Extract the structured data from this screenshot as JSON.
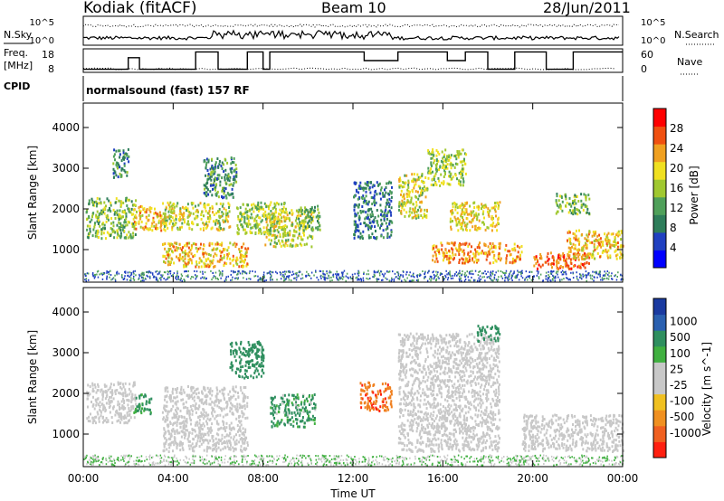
{
  "header": {
    "radar": "Kodiak (fitACF)",
    "beam": "Beam 10",
    "date": "28/Jun/2011"
  },
  "left_labels": {
    "nsky": "N.Sky",
    "freq": "Freq.",
    "freq_unit": "[MHz]",
    "cpid": "CPID"
  },
  "right_labels": {
    "nsearch": "N.Search",
    "nave": "Nave"
  },
  "ticks": {
    "noise_top": "10^5",
    "noise_bottom": "10^0",
    "freq_top": "18",
    "freq_bottom": "8",
    "nave_top": "60",
    "nave_bottom": "0"
  },
  "cpid_text": "normalsound (fast) 157 RF",
  "colors": {
    "power_scale": [
      "#0000ff",
      "#2040c0",
      "#2e7d5a",
      "#4fa05a",
      "#a0c830",
      "#f0e020",
      "#f0a020",
      "#f05010",
      "#ff0000"
    ],
    "velocity_scale": [
      "#1a3aa0",
      "#2a5ab0",
      "#2f7f5f",
      "#30b040",
      "#c8c8c8",
      "#c8c8c8",
      "#f0d020",
      "#f09020",
      "#f04010",
      "#ff0000"
    ],
    "ground_scatter": "#c8c8c8"
  },
  "chart_data": [
    {
      "type": "heatmap",
      "title": "Power",
      "xlabel": "Time UT",
      "ylabel": "Slant Range [km]",
      "x_ticks": [
        "00:00",
        "04:00",
        "08:00",
        "12:00",
        "16:00",
        "20:00",
        "00:00"
      ],
      "y_ticks": [
        1000,
        2000,
        3000,
        4000
      ],
      "ylim": [
        200,
        4600
      ],
      "colorbar_label": "Power [dB]",
      "colorbar_ticks": [
        4,
        8,
        12,
        16,
        20,
        24,
        28
      ],
      "colorbar_range": [
        0,
        32
      ],
      "scatter_regions": [
        {
          "t0": 0.1,
          "t1": 2.3,
          "r0": 1300,
          "r1": 2300,
          "db": 14
        },
        {
          "t0": 1.3,
          "t1": 2.0,
          "r0": 2800,
          "r1": 3500,
          "db": 10
        },
        {
          "t0": 2.2,
          "t1": 3.5,
          "r0": 1500,
          "r1": 2100,
          "db": 22
        },
        {
          "t0": 3.5,
          "t1": 6.5,
          "r0": 1500,
          "r1": 2200,
          "db": 18
        },
        {
          "t0": 3.5,
          "t1": 7.3,
          "r0": 600,
          "r1": 1200,
          "db": 22
        },
        {
          "t0": 5.3,
          "t1": 6.8,
          "r0": 2300,
          "r1": 3300,
          "db": 10
        },
        {
          "t0": 6.8,
          "t1": 9.0,
          "r0": 1400,
          "r1": 2200,
          "db": 16
        },
        {
          "t0": 8.0,
          "t1": 10.2,
          "r0": 1100,
          "r1": 2000,
          "db": 18
        },
        {
          "t0": 9.5,
          "t1": 10.5,
          "r0": 1500,
          "r1": 2100,
          "db": 12
        },
        {
          "t0": 12.0,
          "t1": 13.7,
          "r0": 1300,
          "r1": 2700,
          "db": 8
        },
        {
          "t0": 14.0,
          "t1": 15.3,
          "r0": 1800,
          "r1": 2900,
          "db": 18
        },
        {
          "t0": 15.3,
          "t1": 17.0,
          "r0": 2600,
          "r1": 3500,
          "db": 16
        },
        {
          "t0": 15.5,
          "t1": 19.5,
          "r0": 700,
          "r1": 1200,
          "db": 24
        },
        {
          "t0": 16.3,
          "t1": 18.5,
          "r0": 1500,
          "r1": 2200,
          "db": 20
        },
        {
          "t0": 20.0,
          "t1": 22.5,
          "r0": 550,
          "r1": 950,
          "db": 28
        },
        {
          "t0": 21.5,
          "t1": 24.0,
          "r0": 800,
          "r1": 1500,
          "db": 22
        },
        {
          "t0": 21.0,
          "t1": 22.5,
          "r0": 1900,
          "r1": 2400,
          "db": 14
        }
      ]
    },
    {
      "type": "heatmap",
      "title": "Velocity",
      "xlabel": "Time UT",
      "ylabel": "Slant Range [km]",
      "x_ticks": [
        "00:00",
        "04:00",
        "08:00",
        "12:00",
        "16:00",
        "20:00",
        "00:00"
      ],
      "y_ticks": [
        1000,
        2000,
        3000,
        4000
      ],
      "ylim": [
        200,
        4600
      ],
      "colorbar_label": "Velocity [m s^-1]",
      "colorbar_ticks": [
        1000,
        500,
        100,
        25,
        -25,
        -100,
        -500,
        -1000
      ],
      "scatter_regions": [
        {
          "t0": 0.1,
          "t1": 2.3,
          "r0": 1300,
          "r1": 2300,
          "v": 0
        },
        {
          "t0": 2.2,
          "t1": 3.0,
          "r0": 1500,
          "r1": 2000,
          "v": 200
        },
        {
          "t0": 3.5,
          "t1": 7.3,
          "r0": 600,
          "r1": 2200,
          "v": 0
        },
        {
          "t0": 6.5,
          "t1": 8.0,
          "r0": 2400,
          "r1": 3300,
          "v": 300
        },
        {
          "t0": 8.3,
          "t1": 10.3,
          "r0": 1200,
          "r1": 2000,
          "v": 150
        },
        {
          "t0": 12.3,
          "t1": 13.7,
          "r0": 1600,
          "r1": 2300,
          "v": -400
        },
        {
          "t0": 14.0,
          "t1": 18.5,
          "r0": 600,
          "r1": 3500,
          "v": 0
        },
        {
          "t0": 17.5,
          "t1": 18.5,
          "r0": 3300,
          "r1": 3700,
          "v": 300
        },
        {
          "t0": 19.5,
          "t1": 24.0,
          "r0": 600,
          "r1": 1500,
          "v": 0
        }
      ]
    }
  ]
}
